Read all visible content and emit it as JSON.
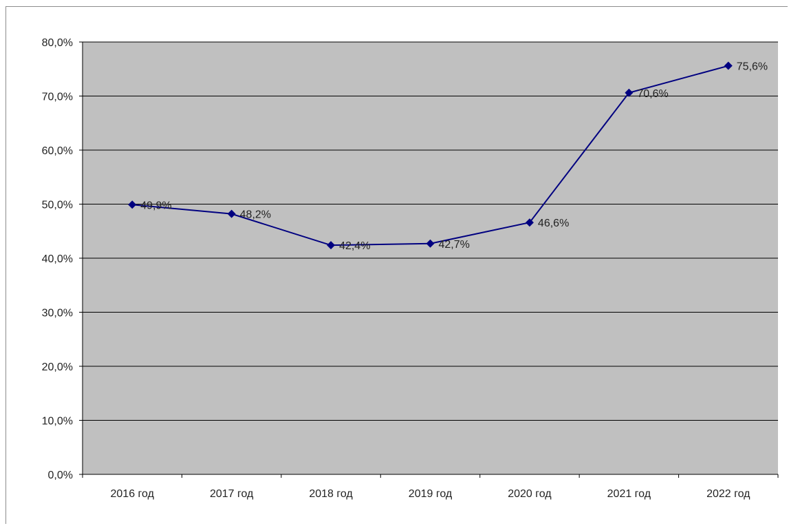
{
  "chart_data": {
    "type": "line",
    "title": "",
    "xlabel": "",
    "ylabel": "",
    "categories": [
      "2016 год",
      "2017 год",
      "2018 год",
      "2019 год",
      "2020 год",
      "2021 год",
      "2022 год"
    ],
    "series": [
      {
        "values": [
          49.9,
          48.2,
          42.4,
          42.7,
          46.6,
          70.6,
          75.6
        ],
        "labels": [
          "49,9%",
          "48,2%",
          "42,4%",
          "42,7%",
          "46,6%",
          "70,6%",
          "75,6%"
        ],
        "color": "#000080"
      }
    ],
    "ylim": [
      0,
      80
    ],
    "yticks": [
      "0,0%",
      "10,0%",
      "20,0%",
      "30,0%",
      "40,0%",
      "50,0%",
      "60,0%",
      "70,0%",
      "80,0%"
    ],
    "grid": true,
    "legend": "none",
    "colors": {
      "plot_background": "#c0c0c0",
      "gridline": "#000000",
      "line": "#000080"
    }
  }
}
